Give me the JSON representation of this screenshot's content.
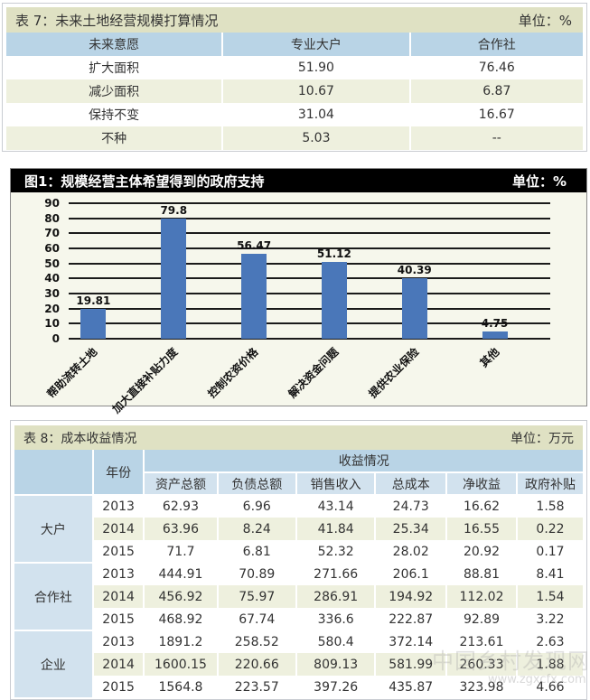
{
  "table7": {
    "title": "表 7：未来土地经营规模打算情况",
    "unit": "单位：%",
    "headers": [
      "未来意愿",
      "专业大户",
      "合作社"
    ],
    "rows": [
      [
        "扩大面积",
        "51.90",
        "76.46"
      ],
      [
        "减少面积",
        "10.67",
        "6.87"
      ],
      [
        "保持不变",
        "31.04",
        "16.67"
      ],
      [
        "不种",
        "5.03",
        "--"
      ]
    ]
  },
  "figure1": {
    "title": "图1：规模经营主体希望得到的政府支持",
    "unit": "单位：%"
  },
  "chart_data": {
    "type": "bar",
    "title": "图1：规模经营主体希望得到的政府支持",
    "unit": "%",
    "categories": [
      "帮助流转土地",
      "加大直接补贴力度",
      "控制农资价格",
      "解决资金问题",
      "提供农业保险",
      "其他"
    ],
    "values": [
      19.81,
      79.8,
      56.47,
      51.12,
      40.39,
      4.75
    ],
    "value_labels": [
      "19.81",
      "79.8",
      "56.47",
      "51.12",
      "40.39",
      "4.75"
    ],
    "yticks": [
      "0",
      "10",
      "20",
      "30",
      "40",
      "50",
      "60",
      "70",
      "80",
      "90"
    ],
    "ylim": [
      0,
      90
    ],
    "xlabel": "",
    "ylabel": "",
    "grid": true,
    "bar_color": "#4a77b9",
    "legend": "none"
  },
  "table8": {
    "title": "表 8：成本收益情况",
    "unit": "单位：万元",
    "year_header": "年份",
    "group_header": "收益情况",
    "columns": [
      "资产总额",
      "负债总额",
      "销售收入",
      "总成本",
      "净收益",
      "政府补贴"
    ],
    "groups": [
      {
        "entity": "大户",
        "rows": [
          [
            "2013",
            "62.93",
            "6.96",
            "43.14",
            "24.73",
            "16.62",
            "1.58"
          ],
          [
            "2014",
            "63.96",
            "8.24",
            "41.84",
            "25.34",
            "16.55",
            "0.22"
          ],
          [
            "2015",
            "71.7",
            "6.81",
            "52.32",
            "28.02",
            "20.92",
            "0.17"
          ]
        ]
      },
      {
        "entity": "合作社",
        "rows": [
          [
            "2013",
            "444.91",
            "70.89",
            "271.66",
            "206.1",
            "88.81",
            "8.41"
          ],
          [
            "2014",
            "456.92",
            "75.97",
            "286.91",
            "194.92",
            "112.02",
            "1.54"
          ],
          [
            "2015",
            "468.92",
            "67.74",
            "336.6",
            "222.87",
            "92.89",
            "3.22"
          ]
        ]
      },
      {
        "entity": "企业",
        "rows": [
          [
            "2013",
            "1891.2",
            "258.52",
            "580.4",
            "372.14",
            "213.61",
            "2.63"
          ],
          [
            "2014",
            "1600.15",
            "220.66",
            "809.13",
            "581.99",
            "260.33",
            "1.88"
          ],
          [
            "2015",
            "1564.8",
            "223.57",
            "397.26",
            "435.87",
            "323.98",
            "4.66"
          ]
        ]
      }
    ]
  },
  "watermark": {
    "text": "中国乡村发现网",
    "url": "www.zgxcfx.com"
  }
}
